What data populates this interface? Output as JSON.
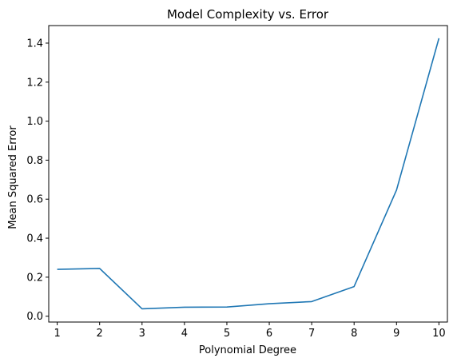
{
  "chart_data": {
    "type": "line",
    "title": "Model Complexity vs. Error",
    "xlabel": "Polynomial Degree",
    "ylabel": "Mean Squared Error",
    "x": [
      1,
      2,
      3,
      4,
      5,
      6,
      7,
      8,
      9,
      10
    ],
    "series": [
      {
        "values": [
          0.24,
          0.245,
          0.038,
          0.046,
          0.047,
          0.064,
          0.075,
          0.152,
          0.647,
          1.425
        ]
      }
    ],
    "xlim": [
      0.8,
      10.2
    ],
    "ylim": [
      -0.03,
      1.49
    ],
    "xticks": [
      "1",
      "2",
      "3",
      "4",
      "5",
      "6",
      "7",
      "8",
      "9",
      "10"
    ],
    "yticks": [
      "0.0",
      "0.2",
      "0.4",
      "0.6",
      "0.8",
      "1.0",
      "1.2",
      "1.4"
    ],
    "grid": false,
    "colors": {
      "line": "#1f77b4",
      "axes": "#000000"
    }
  }
}
